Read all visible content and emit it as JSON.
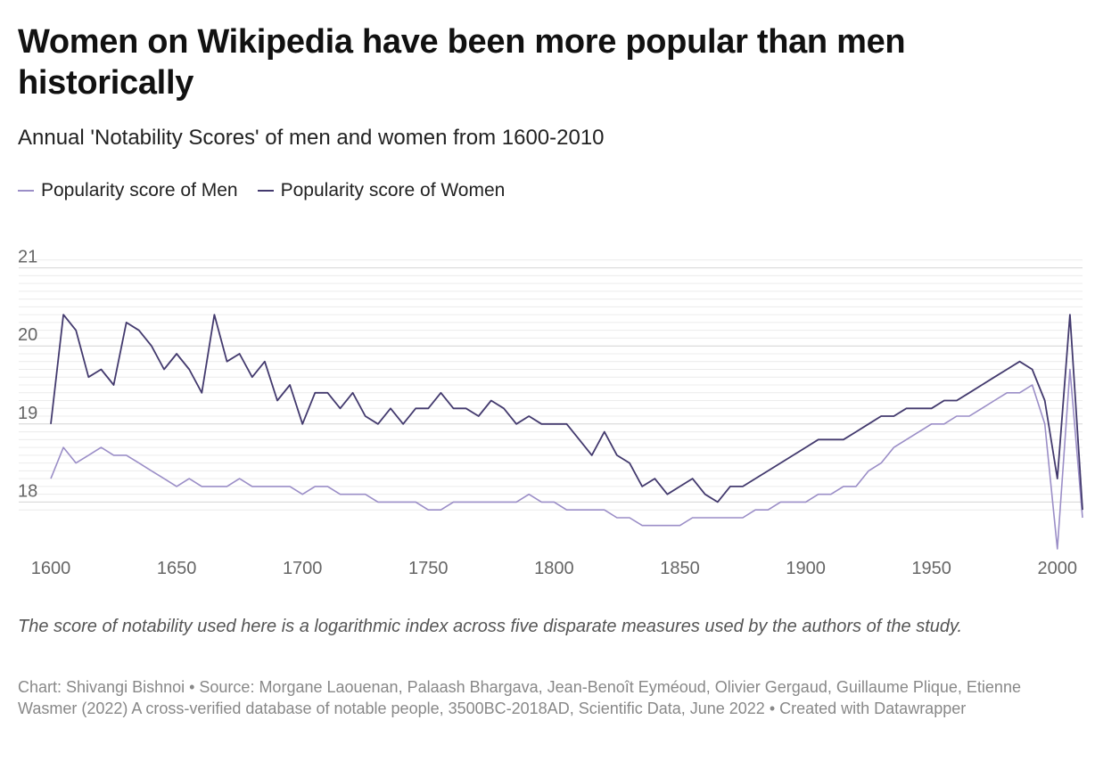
{
  "chart_data": {
    "type": "line",
    "title": "Women on Wikipedia have been more popular than men historically",
    "subtitle": "Annual 'Notability Scores' of men and women from 1600-2010",
    "xlabel": "",
    "ylabel": "",
    "xlim": [
      1600,
      2010
    ],
    "ylim": [
      17.4,
      21.6
    ],
    "x_ticks": [
      1600,
      1650,
      1700,
      1750,
      1800,
      1850,
      1900,
      1950,
      2000
    ],
    "y_ticks": [
      18,
      19,
      20,
      21
    ],
    "grid": true,
    "legend_position": "top-left",
    "x": [
      1600,
      1605,
      1610,
      1615,
      1620,
      1625,
      1630,
      1635,
      1640,
      1645,
      1650,
      1655,
      1660,
      1665,
      1670,
      1675,
      1680,
      1685,
      1690,
      1695,
      1700,
      1705,
      1710,
      1715,
      1720,
      1725,
      1730,
      1735,
      1740,
      1745,
      1750,
      1755,
      1760,
      1765,
      1770,
      1775,
      1780,
      1785,
      1790,
      1795,
      1800,
      1805,
      1810,
      1815,
      1820,
      1825,
      1830,
      1835,
      1840,
      1845,
      1850,
      1855,
      1860,
      1865,
      1870,
      1875,
      1880,
      1885,
      1890,
      1895,
      1900,
      1905,
      1910,
      1915,
      1920,
      1925,
      1930,
      1935,
      1940,
      1945,
      1950,
      1955,
      1960,
      1965,
      1970,
      1975,
      1980,
      1985,
      1990,
      1995,
      2000,
      2005,
      2010
    ],
    "series": [
      {
        "name": "Popularity score of Men",
        "color": "#9b8ec7",
        "values": [
          18.3,
          18.7,
          18.5,
          18.6,
          18.7,
          18.6,
          18.6,
          18.5,
          18.4,
          18.3,
          18.2,
          18.3,
          18.2,
          18.2,
          18.2,
          18.3,
          18.2,
          18.2,
          18.2,
          18.2,
          18.1,
          18.2,
          18.2,
          18.1,
          18.1,
          18.1,
          18.0,
          18.0,
          18.0,
          18.0,
          17.9,
          17.9,
          18.0,
          18.0,
          18.0,
          18.0,
          18.0,
          18.0,
          18.1,
          18.0,
          18.0,
          17.9,
          17.9,
          17.9,
          17.9,
          17.8,
          17.8,
          17.7,
          17.7,
          17.7,
          17.7,
          17.8,
          17.8,
          17.8,
          17.8,
          17.8,
          17.9,
          17.9,
          18.0,
          18.0,
          18.0,
          18.1,
          18.1,
          18.2,
          18.2,
          18.4,
          18.5,
          18.7,
          18.8,
          18.9,
          19.0,
          19.0,
          19.1,
          19.1,
          19.2,
          19.3,
          19.4,
          19.4,
          19.5,
          19.0,
          17.4,
          19.7,
          17.8
        ]
      },
      {
        "name": "Popularity score of Women",
        "color": "#433a6e",
        "values": [
          19.0,
          20.4,
          20.2,
          19.6,
          19.7,
          19.5,
          20.3,
          20.2,
          20.0,
          19.7,
          19.9,
          19.7,
          19.4,
          20.4,
          19.8,
          19.9,
          19.6,
          19.8,
          19.3,
          19.5,
          19.0,
          19.4,
          19.4,
          19.2,
          19.4,
          19.1,
          19.0,
          19.2,
          19.0,
          19.2,
          19.2,
          19.4,
          19.2,
          19.2,
          19.1,
          19.3,
          19.2,
          19.0,
          19.1,
          19.0,
          19.0,
          19.0,
          18.8,
          18.6,
          18.9,
          18.6,
          18.5,
          18.2,
          18.3,
          18.1,
          18.2,
          18.3,
          18.1,
          18.0,
          18.2,
          18.2,
          18.3,
          18.4,
          18.5,
          18.6,
          18.7,
          18.8,
          18.8,
          18.8,
          18.9,
          19.0,
          19.1,
          19.1,
          19.2,
          19.2,
          19.2,
          19.3,
          19.3,
          19.4,
          19.5,
          19.6,
          19.7,
          19.8,
          19.7,
          19.3,
          18.3,
          20.4,
          17.9
        ]
      }
    ]
  },
  "note": "The score of notability used here is a logarithmic index across five disparate measures used by the authors of the study.",
  "credit": "Chart: Shivangi Bishnoi • Source: Morgane Laouenan, Palaash Bhargava, Jean-Benoît Eyméoud, Olivier Gergaud, Guillaume Plique, Etienne Wasmer (2022) A cross-verified database of notable people, 3500BC-2018AD, Scientific Data, June 2022 • Created with Datawrapper"
}
